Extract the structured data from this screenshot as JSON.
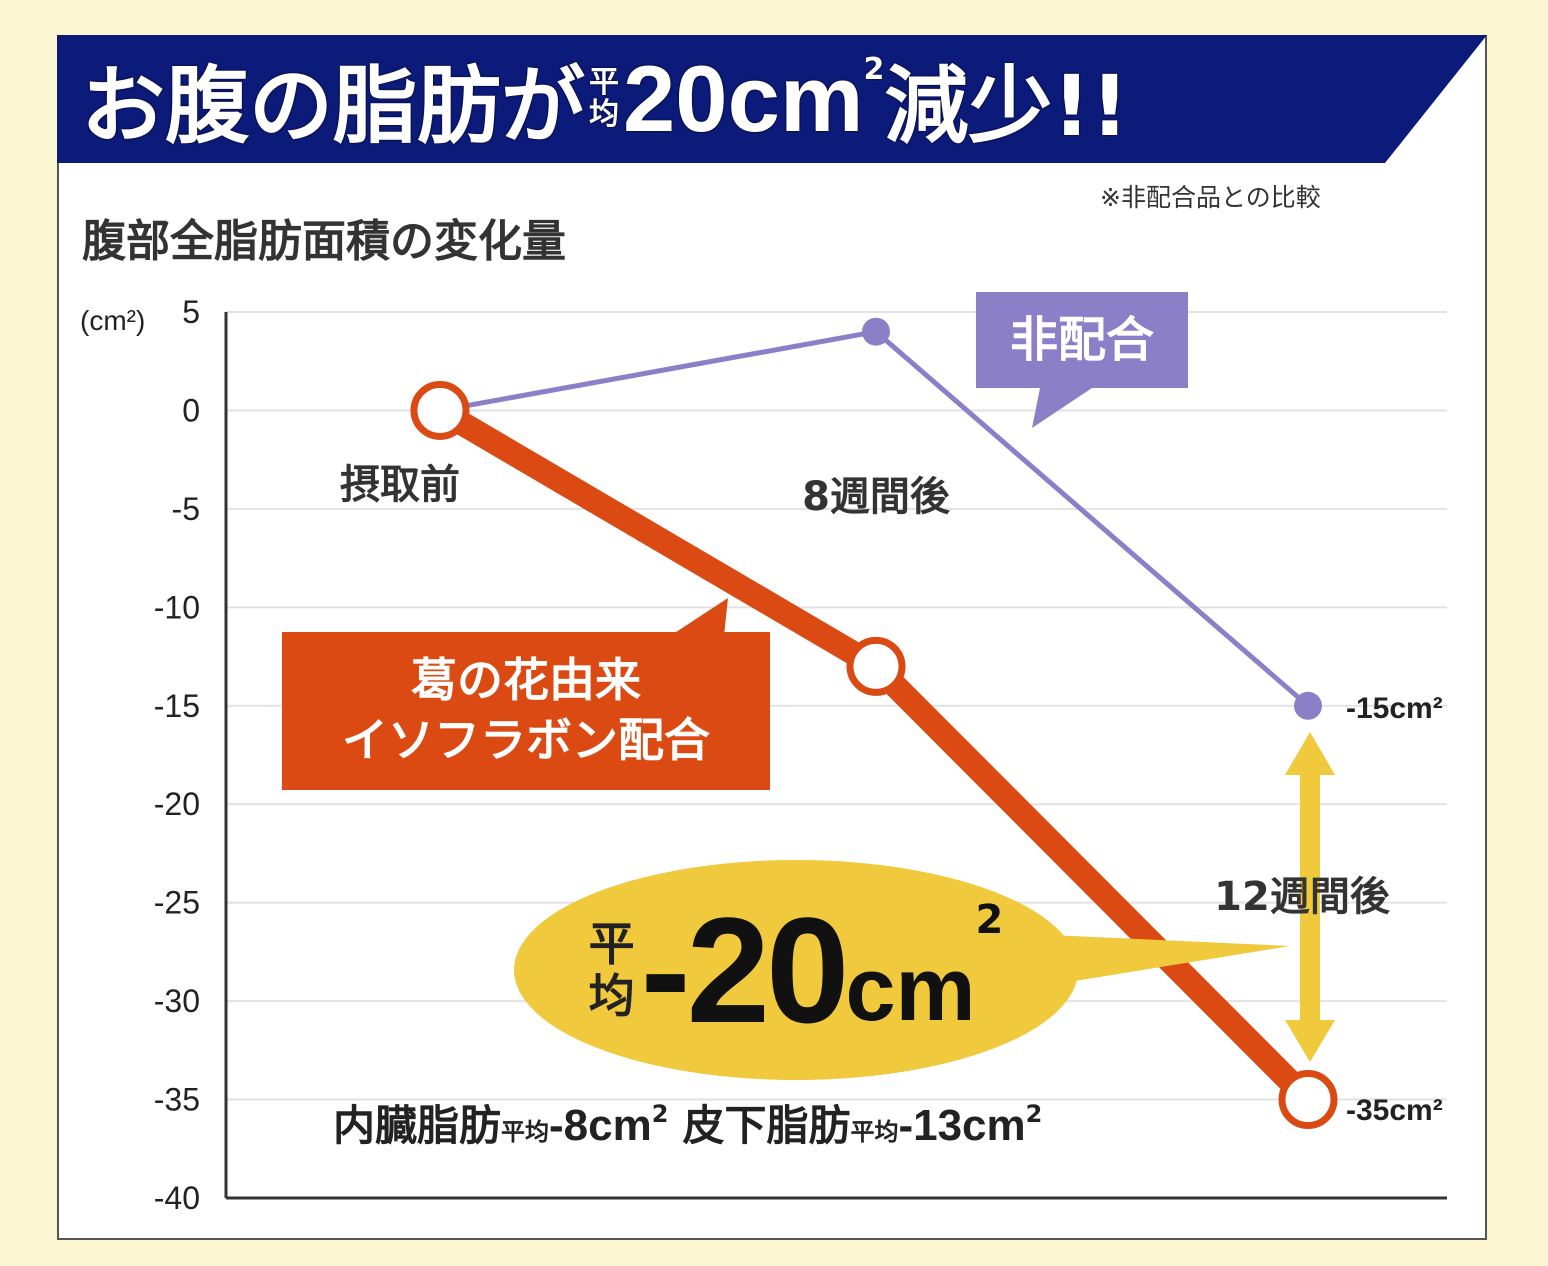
{
  "header": {
    "title_part1": "お腹の脂肪が",
    "title_avg_top": "平",
    "title_avg_bottom": "均",
    "title_value": "20cm",
    "title_sup": "2",
    "title_part2": "減少!!",
    "note": "※非配合品との比較",
    "navy": "#0c1a7a"
  },
  "chart_data": {
    "type": "line",
    "title": "腹部全脂肪面積の変化量",
    "ylabel": "(cm²)",
    "ylim": [
      -40,
      5
    ],
    "yticks": [
      "5",
      "0",
      "-5",
      "-10",
      "-15",
      "-20",
      "-25",
      "-30",
      "-35",
      "-40"
    ],
    "x": [
      "摂取前",
      "8週間後",
      "12週間後"
    ],
    "series": [
      {
        "name": "非配合",
        "values": [
          0,
          4,
          -15
        ],
        "color": "#8b80c8"
      },
      {
        "name": "葛の花由来 イソフラボン配合",
        "values": [
          0,
          -13,
          -35
        ],
        "color": "#dc4a14"
      }
    ],
    "end_labels": [
      "-15cm²",
      "-35cm²"
    ],
    "grid": true
  },
  "labels": {
    "placebo": "非配合",
    "iso_line1": "葛の花由来",
    "iso_line2": "イソフラボン配合"
  },
  "callout": {
    "avg_top": "平",
    "avg_bottom": "均",
    "value": "-20",
    "unit": "cm",
    "sup": "2",
    "color": "#f0c93c"
  },
  "breakdown": {
    "visceral_label": "内臓脂肪",
    "visceral_avg": "平均",
    "visceral_value": "-8cm",
    "visceral_sup": "2",
    "subcutaneous_label": "皮下脂肪",
    "subcutaneous_avg": "平均",
    "subcutaneous_value": "-13cm",
    "subcutaneous_sup": "2"
  }
}
